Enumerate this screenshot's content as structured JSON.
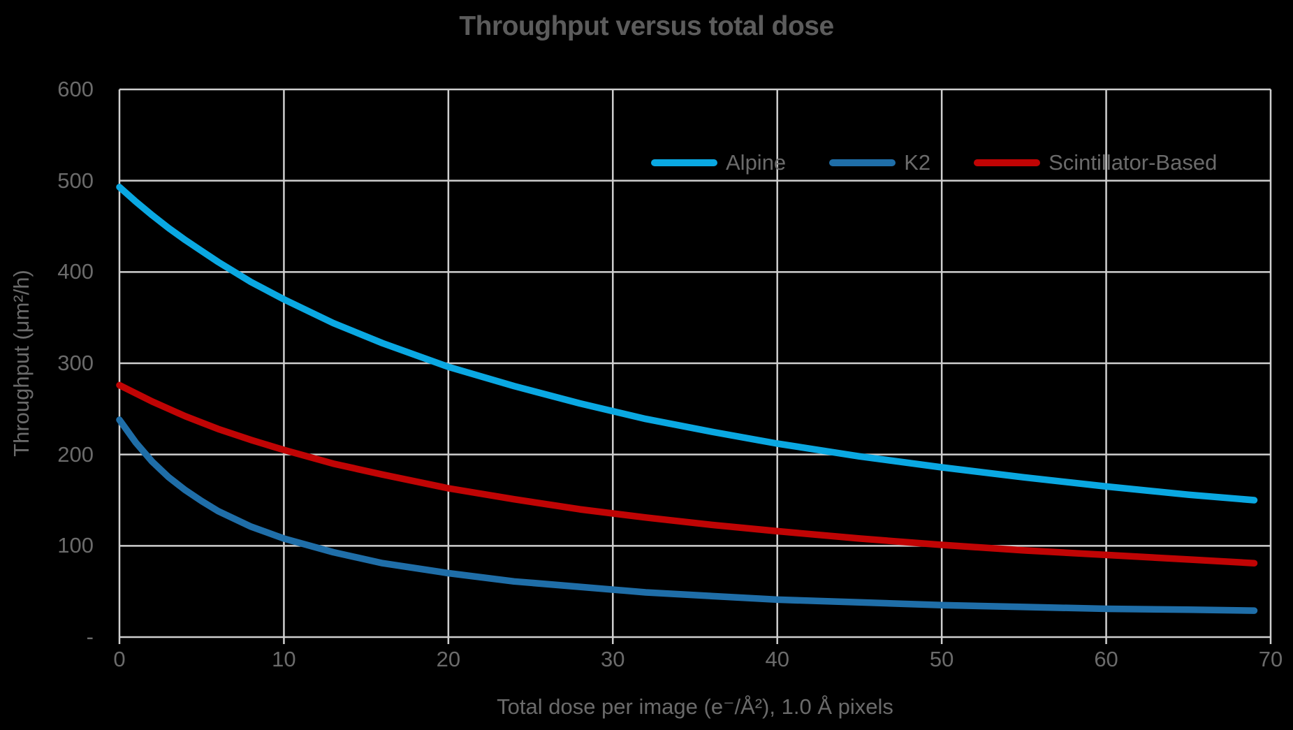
{
  "chart_data": {
    "type": "line",
    "title": "Throughput versus total dose",
    "xlabel": "Total dose per image (e⁻/Å²), 1.0 Å pixels",
    "ylabel": "Throughput (μm²/h)",
    "xlim": [
      0,
      70
    ],
    "ylim": [
      0,
      600
    ],
    "grid": true,
    "legend_position": "inside-top-right",
    "x_ticks": [
      0,
      10,
      20,
      30,
      40,
      50,
      60,
      70
    ],
    "y_tick_values": [
      0,
      100,
      200,
      300,
      400,
      500,
      600
    ],
    "y_tick_labels": [
      "-",
      "100",
      "200",
      "300",
      "400",
      "500",
      "600"
    ],
    "x": [
      0,
      1,
      2,
      3,
      4,
      5,
      6,
      8,
      10,
      13,
      16,
      20,
      24,
      28,
      32,
      36,
      40,
      45,
      50,
      55,
      60,
      65,
      69
    ],
    "series": [
      {
        "name": "Alpine",
        "color": "#0AA8E2",
        "values": [
          493,
          477,
          462,
          448,
          435,
          423,
          411,
          389,
          370,
          344,
          322,
          296,
          275,
          256,
          239,
          225,
          212,
          198,
          186,
          175,
          165,
          156,
          150
        ]
      },
      {
        "name": "K2",
        "color": "#1F6EA8",
        "values": [
          238,
          213,
          192,
          175,
          161,
          149,
          138,
          121,
          108,
          93,
          81,
          70,
          61,
          55,
          49,
          45,
          41,
          38,
          35,
          33,
          31,
          30,
          29
        ]
      },
      {
        "name": "Scintillator-Based",
        "color": "#C00404",
        "values": [
          276,
          267,
          258,
          250,
          242,
          235,
          228,
          216,
          205,
          190,
          178,
          163,
          151,
          140,
          131,
          123,
          116,
          108,
          101,
          95,
          90,
          85,
          81
        ]
      }
    ]
  },
  "colors": {
    "background": "#000000",
    "grid": "#CFCFCF",
    "title_text": "#5C5C5C",
    "axis_text": "#6B6B6B"
  }
}
